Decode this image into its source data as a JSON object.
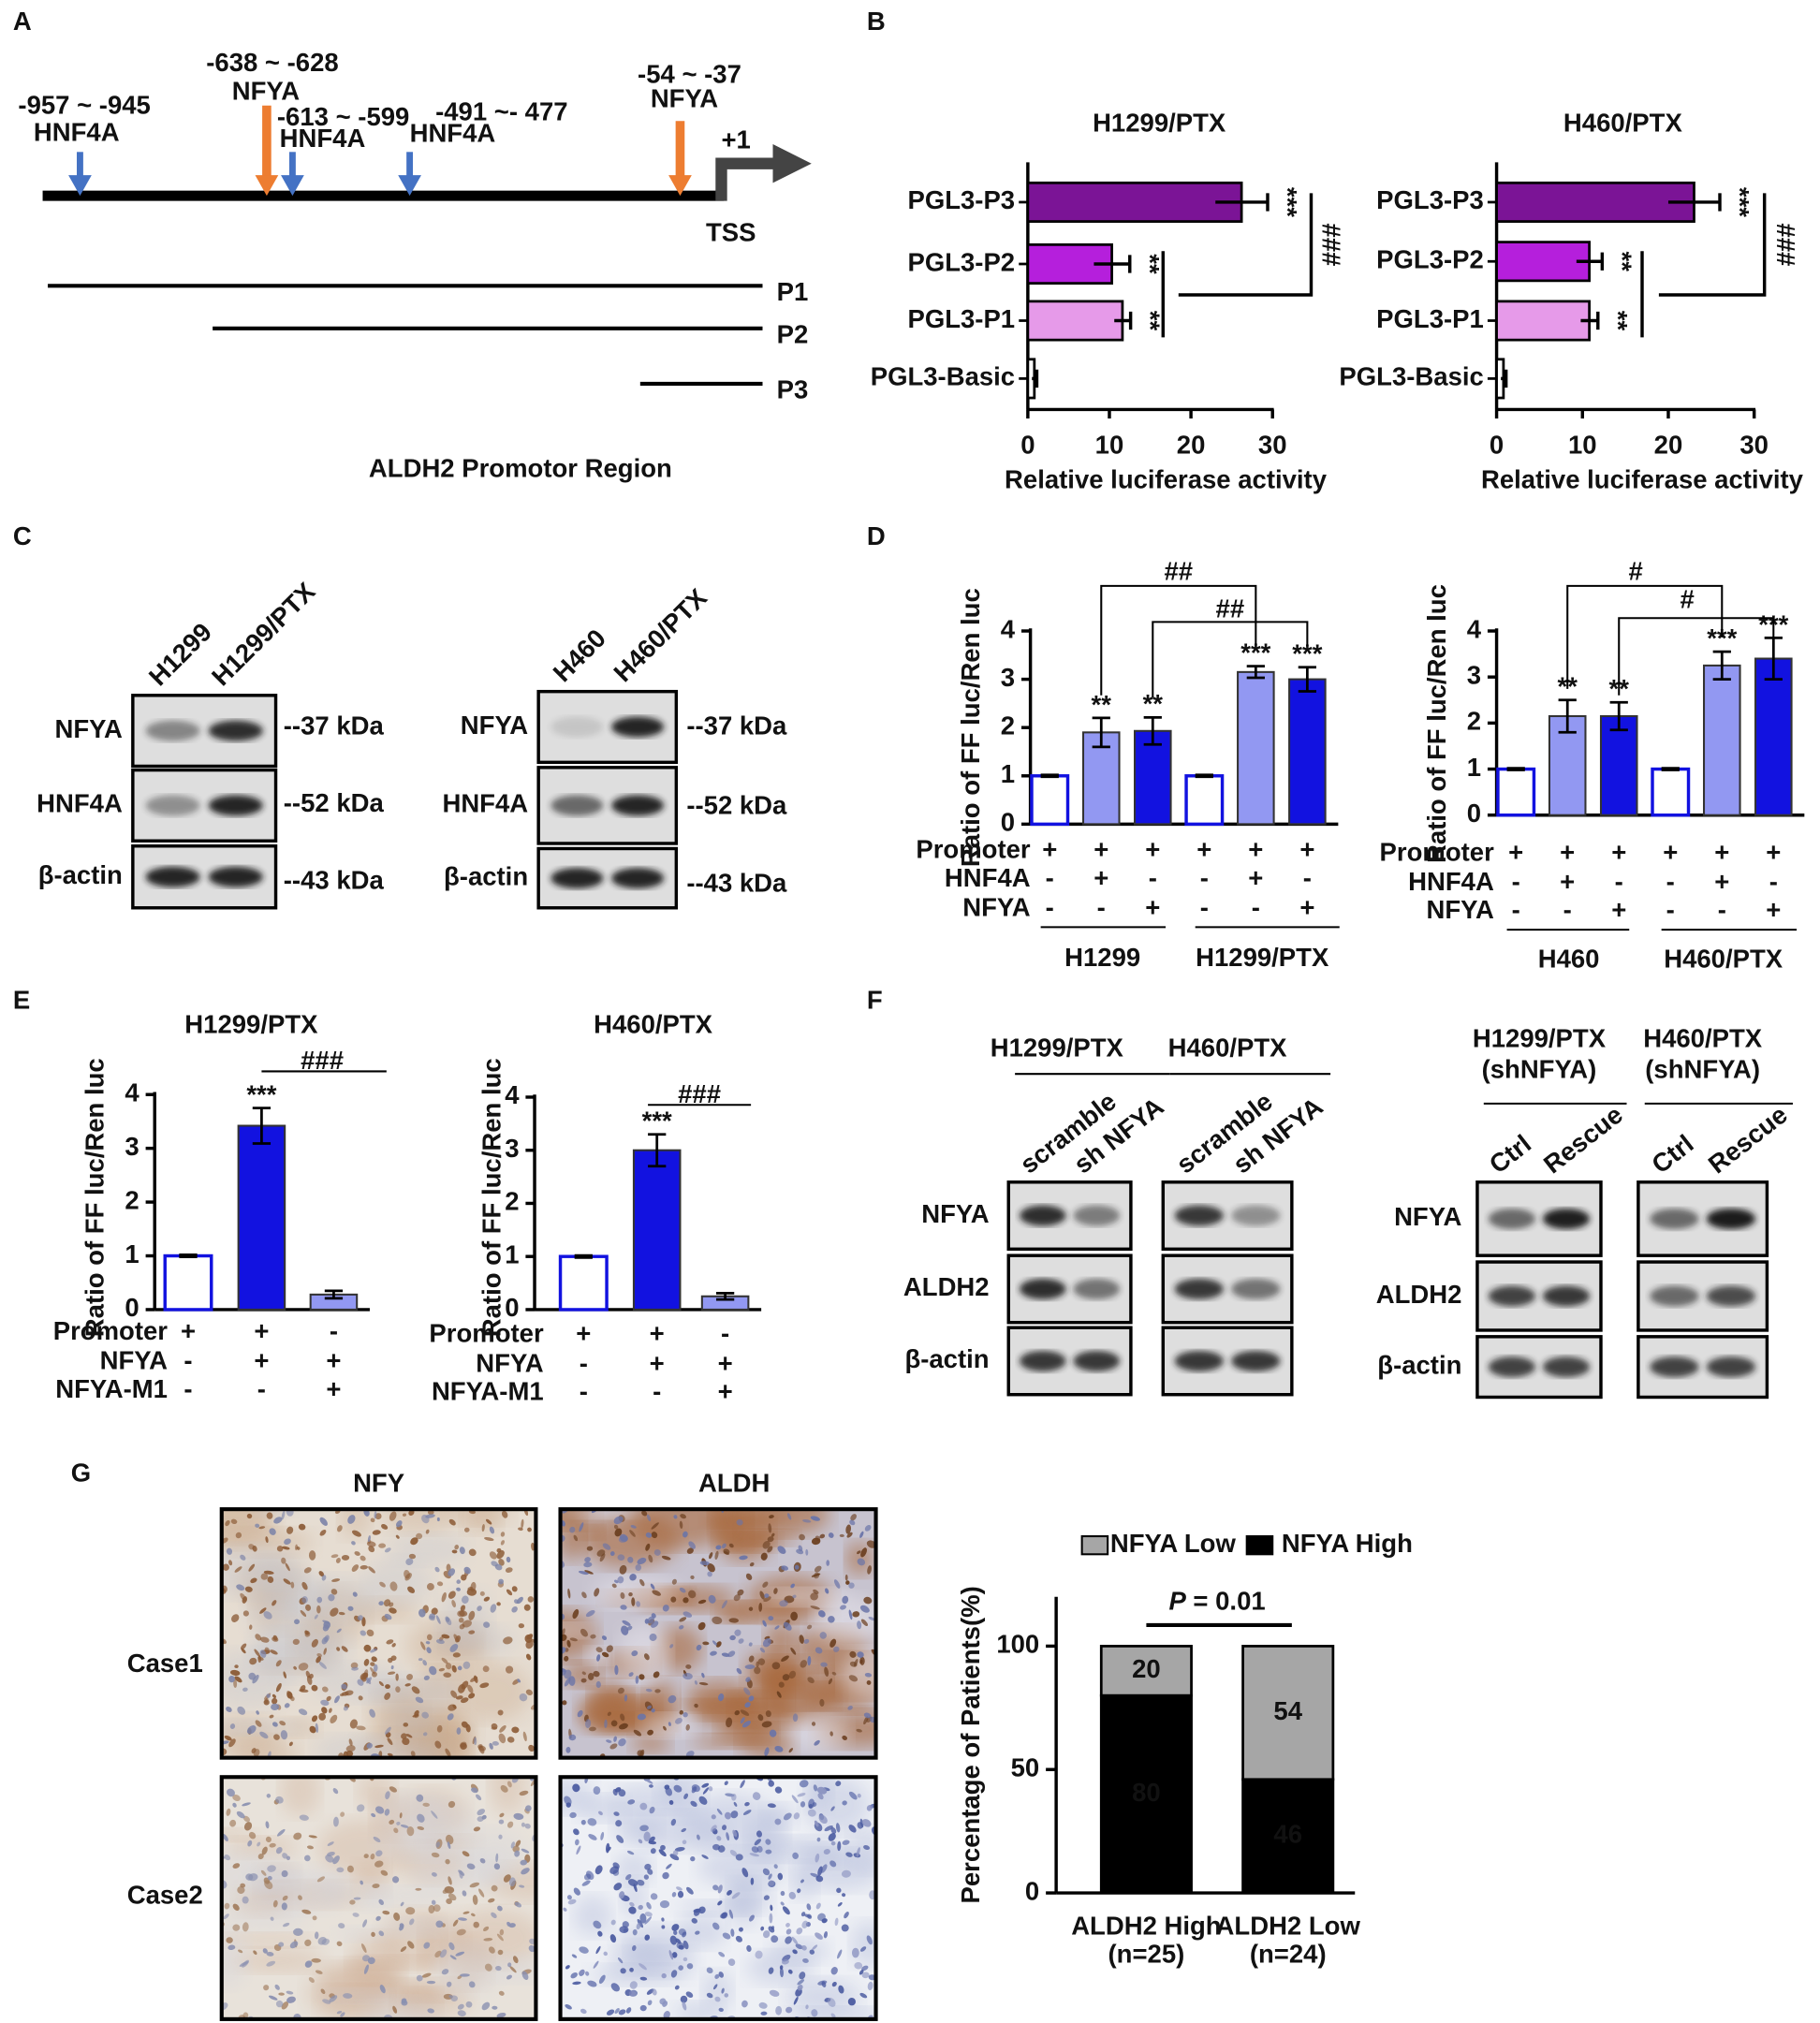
{
  "panel_labels": [
    "A",
    "B",
    "C",
    "D",
    "E",
    "F",
    "G"
  ],
  "promoter": {
    "sites": [
      {
        "range": "-957  ~ -945",
        "factor": "HNF4A"
      },
      {
        "range": "-638 ~ -628",
        "factor": "NFYA"
      },
      {
        "range": "-613 ~ -599",
        "factor": "HNF4A"
      },
      {
        "range": "-491 ~- 477",
        "factor": "HNF4A"
      },
      {
        "range": "-54 ~ -37",
        "factor": "NFYA"
      }
    ],
    "colors": {
      "HNF4A": "#4472c4",
      "NFYA": "#ed7d31"
    },
    "start": "+1",
    "tss": "TSS",
    "fragments": [
      "P1",
      "P2",
      "P3"
    ],
    "caption": "ALDH2 Promotor Region"
  },
  "blots": [
    {
      "panels": [
        {
          "lanes": [
            "H1299",
            "H1299/PTX"
          ]
        }
      ],
      "rows": [
        "NFYA",
        "HNF4A",
        "β-actin"
      ],
      "markers": [
        "--37 kDa",
        "--52 kDa",
        "--43 kDa"
      ]
    },
    {
      "panels": [
        {
          "lanes": [
            "H460",
            "H460/PTX"
          ]
        }
      ],
      "rows": [
        "NFYA",
        "HNF4A",
        "β-actin"
      ],
      "markers": [
        "--37 kDa",
        "--52 kDa",
        "--43 kDa"
      ]
    },
    {
      "panels": [
        {
          "header": [
            "H1299/PTX"
          ],
          "lanes": [
            "scramble",
            "sh NFYA"
          ]
        },
        {
          "header": [
            "H460/PTX"
          ],
          "lanes": [
            "scramble",
            "sh NFYA"
          ]
        }
      ],
      "rows": [
        "NFYA",
        "ALDH2",
        "β-actin"
      ]
    },
    {
      "panels": [
        {
          "header": [
            "H1299/PTX",
            "(shNFYA)"
          ],
          "lanes": [
            "Ctrl",
            "Rescue"
          ]
        },
        {
          "header": [
            "H460/PTX",
            "(shNFYA)"
          ],
          "lanes": [
            "Ctrl",
            "Rescue"
          ]
        }
      ],
      "rows": [
        "NFYA",
        "ALDH2",
        "β-actin"
      ]
    }
  ],
  "ihc": {
    "columns": [
      "NFY",
      "ALDH"
    ],
    "rows": [
      "Case1",
      "Case2"
    ]
  },
  "chart_data": [
    {
      "type": "hbar",
      "title": "H1299/PTX",
      "categories": [
        "PGL3-P3",
        "PGL3-P2",
        "PGL3-P1",
        "PGL3-Basic"
      ],
      "values": [
        26.2,
        10.3,
        11.6,
        0.8
      ],
      "errors": [
        3.2,
        2.2,
        1.0,
        0.3
      ],
      "colors": [
        "#7b1496",
        "#b51fdc",
        "#e69ae9",
        "#ffffff"
      ],
      "significance": [
        "***",
        "**",
        "**",
        null
      ],
      "comparison": "###",
      "xlabel": "Relative luciferase activity",
      "xlim": [
        0,
        30
      ],
      "xticks": [
        0,
        10,
        20,
        30
      ]
    },
    {
      "type": "hbar",
      "title": "H460/PTX",
      "categories": [
        "PGL3-P3",
        "PGL3-P2",
        "PGL3-P1",
        "PGL3-Basic"
      ],
      "values": [
        23,
        10.8,
        10.8,
        0.8
      ],
      "errors": [
        3.0,
        1.5,
        1.0,
        0.3
      ],
      "colors": [
        "#7b1496",
        "#b51fdc",
        "#e69ae9",
        "#ffffff"
      ],
      "significance": [
        "***",
        "**",
        "**",
        null
      ],
      "comparison": "###",
      "xlabel": "Relative luciferase activity",
      "xlim": [
        0,
        30
      ],
      "xticks": [
        0,
        10,
        20,
        30
      ]
    },
    {
      "type": "bar",
      "values": [
        1,
        1.9,
        1.93,
        1,
        3.15,
        3.0
      ],
      "errors": [
        0.02,
        0.3,
        0.28,
        0.02,
        0.12,
        0.25
      ],
      "colors": [
        "#ffffff",
        "#9298f2",
        "#1212e0",
        "#ffffff",
        "#9298f2",
        "#1212e0"
      ],
      "significance": [
        null,
        "**",
        "**",
        null,
        "***",
        "***"
      ],
      "conditions": [
        {
          "name": "Promoter",
          "signs": [
            "+",
            "+",
            "+",
            "+",
            "+",
            "+"
          ]
        },
        {
          "name": "HNF4A",
          "signs": [
            "-",
            "+",
            "-",
            "-",
            "+",
            "-"
          ]
        },
        {
          "name": "NFYA",
          "signs": [
            "-",
            "-",
            "+",
            "-",
            "-",
            "+"
          ]
        }
      ],
      "groups": [
        "H1299",
        "H1299/PTX"
      ],
      "comparisons": [
        "##",
        "##"
      ],
      "ylabel": "Ratio of FF luc/Ren luc",
      "ylim": [
        0,
        4
      ],
      "yticks": [
        0,
        1,
        2,
        3,
        4
      ]
    },
    {
      "type": "bar",
      "values": [
        1,
        2.15,
        2.15,
        1,
        3.25,
        3.4
      ],
      "errors": [
        0.02,
        0.35,
        0.3,
        0.02,
        0.3,
        0.45
      ],
      "colors": [
        "#ffffff",
        "#9298f2",
        "#1212e0",
        "#ffffff",
        "#9298f2",
        "#1212e0"
      ],
      "significance": [
        null,
        "**",
        "**",
        null,
        "***",
        "***"
      ],
      "conditions": [
        {
          "name": "Promoter",
          "signs": [
            "+",
            "+",
            "+",
            "+",
            "+",
            "+"
          ]
        },
        {
          "name": "HNF4A",
          "signs": [
            "-",
            "+",
            "-",
            "-",
            "+",
            "-"
          ]
        },
        {
          "name": "NFYA",
          "signs": [
            "-",
            "-",
            "+",
            "-",
            "-",
            "+"
          ]
        }
      ],
      "groups": [
        "H460",
        "H460/PTX"
      ],
      "comparisons": [
        "#",
        "#"
      ],
      "ylabel": "Ratio of FF luc/Ren luc",
      "ylim": [
        0,
        4
      ],
      "yticks": [
        0,
        1,
        2,
        3,
        4
      ]
    },
    {
      "type": "bar",
      "title": "H1299/PTX",
      "values": [
        1,
        3.42,
        0.28
      ],
      "errors": [
        0.02,
        0.33,
        0.07
      ],
      "colors": [
        "#ffffff",
        "#1212e0",
        "#9298f2"
      ],
      "significance": [
        null,
        "***",
        null
      ],
      "conditions": [
        {
          "name": "Promoter",
          "signs": [
            "+",
            "+",
            "-"
          ]
        },
        {
          "name": "NFYA",
          "signs": [
            "-",
            "+",
            "+"
          ]
        },
        {
          "name": "NFYA-M1",
          "signs": [
            "-",
            "-",
            "+"
          ]
        }
      ],
      "comparisons": [
        "###"
      ],
      "ylabel": "Ratio of FF luc/Ren luc",
      "ylim": [
        0,
        4
      ],
      "yticks": [
        0,
        1,
        2,
        3,
        4
      ]
    },
    {
      "type": "bar",
      "title": "H460/PTX",
      "values": [
        1,
        3.0,
        0.25
      ],
      "errors": [
        0.02,
        0.3,
        0.06
      ],
      "colors": [
        "#ffffff",
        "#1212e0",
        "#9298f2"
      ],
      "significance": [
        null,
        "***",
        null
      ],
      "conditions": [
        {
          "name": "Promoter",
          "signs": [
            "+",
            "+",
            "-"
          ]
        },
        {
          "name": "NFYA",
          "signs": [
            "-",
            "+",
            "+"
          ]
        },
        {
          "name": "NFYA-M1",
          "signs": [
            "-",
            "-",
            "+"
          ]
        }
      ],
      "comparisons": [
        "###"
      ],
      "ylabel": "Ratio of FF luc/Ren luc",
      "ylim": [
        0,
        4
      ],
      "yticks": [
        0,
        1,
        2,
        3,
        4
      ]
    },
    {
      "type": "stacked_bar",
      "categories": [
        "ALDH2 High",
        "ALDH2 Low"
      ],
      "category_counts": [
        "(n=25)",
        "(n=24)"
      ],
      "series": [
        {
          "name": "NFYA High",
          "color": "#000000",
          "values": [
            80,
            46
          ]
        },
        {
          "name": "NFYA Low",
          "color": "#a6a6a6",
          "values": [
            20,
            54
          ]
        }
      ],
      "p_symbol": "P",
      "p_text": " = 0.01",
      "ylabel": "Percentage of Patients(%)",
      "ylim": [
        0,
        120
      ],
      "yticks": [
        0,
        50,
        100
      ]
    }
  ]
}
